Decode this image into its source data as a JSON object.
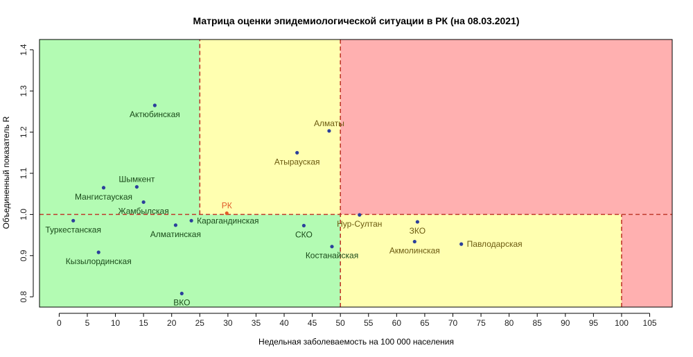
{
  "chart_data": {
    "type": "scatter",
    "title": "Матрица оценки эпидемиологической ситуации в РК (на 08.03.2021)",
    "xlabel": "Недельная заболеваемость на 100 000 населения",
    "ylabel": "Объединенный показатель R",
    "xlim": [
      -3.5,
      109
    ],
    "ylim": [
      0.775,
      1.425
    ],
    "x_ticks": [
      0,
      5,
      10,
      15,
      20,
      25,
      30,
      35,
      40,
      45,
      50,
      55,
      60,
      65,
      70,
      75,
      80,
      85,
      90,
      95,
      100,
      105
    ],
    "y_ticks": [
      0.8,
      0.9,
      1.0,
      1.1,
      1.2,
      1.3,
      1.4
    ],
    "zones": [
      {
        "x": [
          -3.5,
          25
        ],
        "y": [
          1.0,
          1.425
        ],
        "color": "#b3fbb3"
      },
      {
        "x": [
          -3.5,
          50
        ],
        "y": [
          0.775,
          1.0
        ],
        "color": "#b3fbb3"
      },
      {
        "x": [
          25,
          50
        ],
        "y": [
          1.0,
          1.425
        ],
        "color": "#ffffb0"
      },
      {
        "x": [
          50,
          100
        ],
        "y": [
          0.775,
          1.0
        ],
        "color": "#ffffb0"
      },
      {
        "x": [
          50,
          109
        ],
        "y": [
          1.0,
          1.425
        ],
        "color": "#ffb0b0"
      },
      {
        "x": [
          100,
          109
        ],
        "y": [
          0.775,
          1.0
        ],
        "color": "#ffb0b0"
      }
    ],
    "threshold_lines": [
      {
        "x": [
          25,
          25
        ],
        "y": [
          1.0,
          1.425
        ]
      },
      {
        "x": [
          50,
          50
        ],
        "y": [
          0.775,
          1.425
        ]
      },
      {
        "x": [
          100,
          100
        ],
        "y": [
          0.775,
          1.0
        ]
      },
      {
        "x": [
          -3.5,
          109
        ],
        "y": [
          1.0,
          1.0
        ]
      }
    ],
    "colors": {
      "point": "#2b3f9b",
      "label_green": "#1a4a1a",
      "label_yellow": "#6b5a10",
      "label_highlight": "#e05a2a",
      "line": "#c0392b"
    },
    "points": [
      {
        "name": "Актюбинская",
        "x": 17,
        "y": 1.265,
        "label_pos": "below",
        "color": "label_green"
      },
      {
        "name": "Алматы",
        "x": 48,
        "y": 1.203,
        "label_pos": "above",
        "color": "label_yellow"
      },
      {
        "name": "Атырауская",
        "x": 42.3,
        "y": 1.15,
        "label_pos": "below",
        "color": "label_yellow"
      },
      {
        "name": "Шымкент",
        "x": 13.8,
        "y": 1.067,
        "label_pos": "above",
        "color": "label_green"
      },
      {
        "name": "Мангистауская",
        "x": 7.9,
        "y": 1.065,
        "label_pos": "below",
        "color": "label_green"
      },
      {
        "name": "Жамбылская",
        "x": 15,
        "y": 1.03,
        "label_pos": "below",
        "color": "label_green"
      },
      {
        "name": "РК",
        "x": 29.8,
        "y": 1.003,
        "label_pos": "above",
        "color": "label_highlight",
        "point_color": "label_highlight"
      },
      {
        "name": "Нур-Султан",
        "x": 53.4,
        "y": 0.999,
        "label_pos": "below",
        "color": "label_yellow"
      },
      {
        "name": "Туркестанская",
        "x": 2.5,
        "y": 0.985,
        "label_pos": "below",
        "color": "label_green"
      },
      {
        "name": "Карагандинская",
        "x": 23.5,
        "y": 0.985,
        "label_pos": "right",
        "color": "label_green"
      },
      {
        "name": "ЗКО",
        "x": 63.7,
        "y": 0.982,
        "label_pos": "below",
        "color": "label_yellow"
      },
      {
        "name": "Алматинская",
        "x": 20.7,
        "y": 0.974,
        "label_pos": "below",
        "color": "label_green"
      },
      {
        "name": "СКО",
        "x": 43.5,
        "y": 0.973,
        "label_pos": "below",
        "color": "label_green"
      },
      {
        "name": "Акмолинская",
        "x": 63.2,
        "y": 0.934,
        "label_pos": "below",
        "color": "label_yellow"
      },
      {
        "name": "Павлодарская",
        "x": 71.5,
        "y": 0.928,
        "label_pos": "right",
        "color": "label_yellow"
      },
      {
        "name": "Костанайская",
        "x": 48.5,
        "y": 0.922,
        "label_pos": "below",
        "color": "label_green"
      },
      {
        "name": "Кызылординская",
        "x": 7,
        "y": 0.908,
        "label_pos": "below",
        "color": "label_green"
      },
      {
        "name": "ВКО",
        "x": 21.8,
        "y": 0.808,
        "label_pos": "below",
        "color": "label_green"
      }
    ]
  }
}
